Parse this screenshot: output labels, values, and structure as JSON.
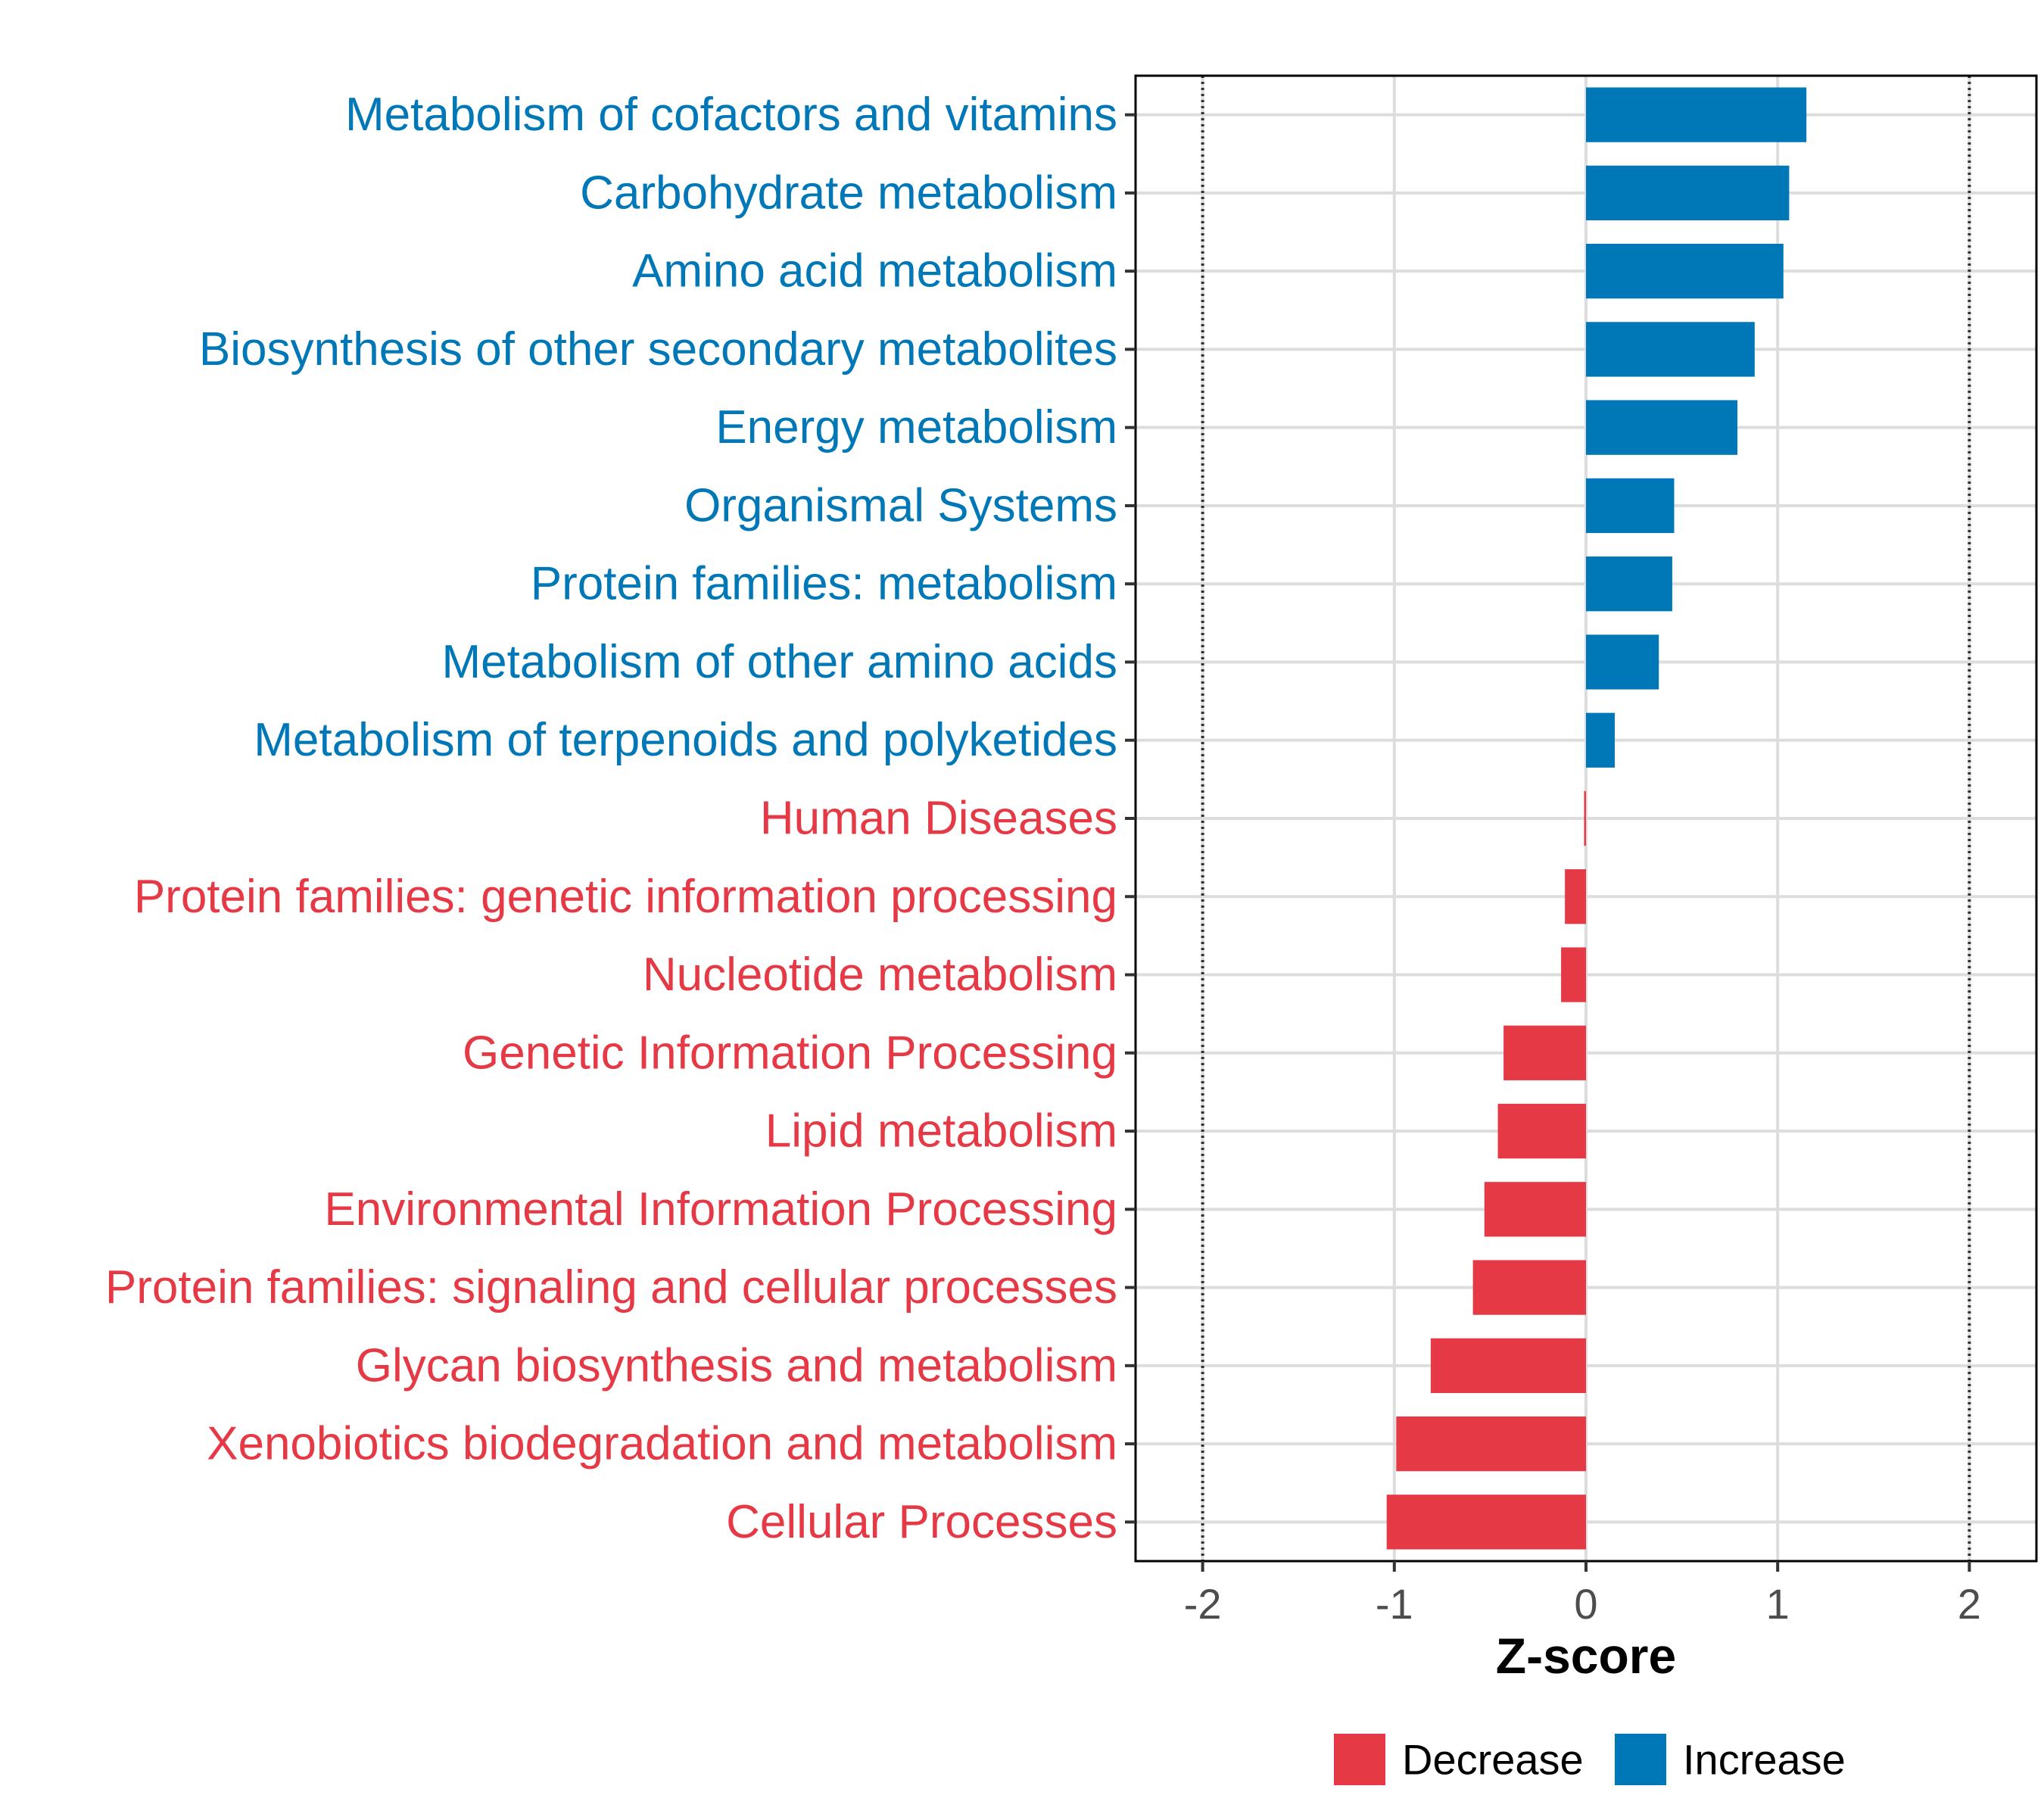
{
  "chart_data": {
    "type": "bar",
    "orientation": "horizontal",
    "xlabel": "Z-score",
    "ylabel": "",
    "title": "",
    "xlim": [
      -2.35,
      2.35
    ],
    "xticks": [
      -2,
      -1,
      0,
      1,
      2
    ],
    "xtick_labels": [
      "-2",
      "-1",
      "0",
      "1",
      "2"
    ],
    "reference_lines": [
      -2,
      2
    ],
    "grid": true,
    "legend_position": "bottom",
    "categories": [
      "Metabolism of cofactors and vitamins",
      "Carbohydrate metabolism",
      "Amino acid metabolism",
      "Biosynthesis of other secondary metabolites",
      "Energy metabolism",
      "Organismal Systems",
      "Protein families: metabolism",
      "Metabolism of other amino acids",
      "Metabolism of terpenoids and polyketides",
      "Human Diseases",
      "Protein families: genetic information processing",
      "Nucleotide metabolism",
      "Genetic Information Processing",
      "Lipid metabolism",
      "Environmental Information Processing",
      "Protein families: signaling and cellular processes",
      "Glycan biosynthesis and metabolism",
      "Xenobiotics biodegradation and metabolism",
      "Cellular Processes"
    ],
    "values": [
      1.15,
      1.06,
      1.03,
      0.88,
      0.79,
      0.46,
      0.45,
      0.38,
      0.15,
      -0.01,
      -0.11,
      -0.13,
      -0.43,
      -0.46,
      -0.53,
      -0.59,
      -0.81,
      -0.99,
      -1.04
    ],
    "groups": [
      "Increase",
      "Increase",
      "Increase",
      "Increase",
      "Increase",
      "Increase",
      "Increase",
      "Increase",
      "Increase",
      "Decrease",
      "Decrease",
      "Decrease",
      "Decrease",
      "Decrease",
      "Decrease",
      "Decrease",
      "Decrease",
      "Decrease",
      "Decrease"
    ],
    "legend": [
      {
        "name": "Decrease",
        "color": "#E63946"
      },
      {
        "name": "Increase",
        "color": "#0077B6"
      }
    ]
  }
}
